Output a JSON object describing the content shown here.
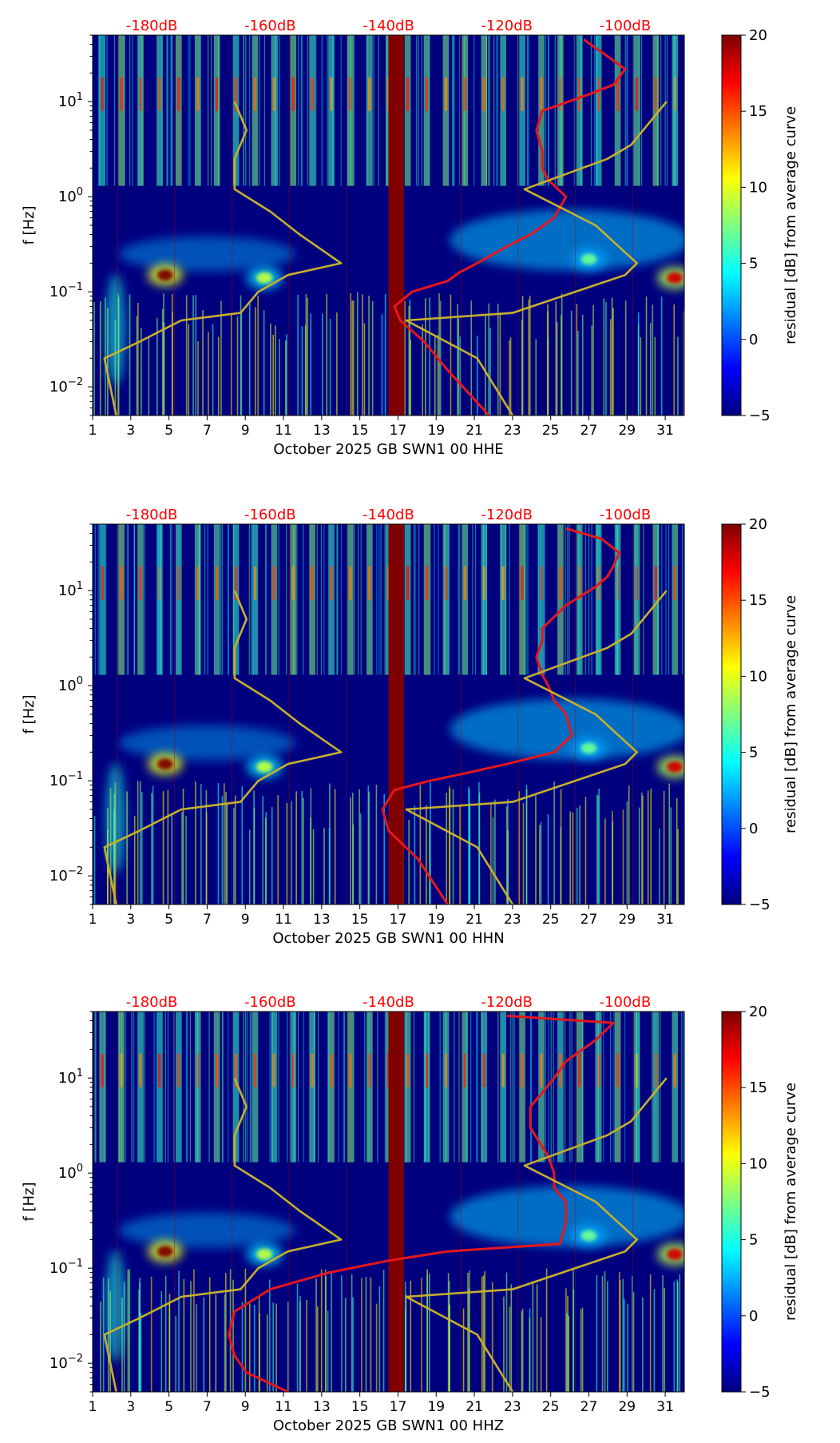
{
  "colorbar": {
    "label": "residual [dB] from average curve",
    "min": -5,
    "max": 20,
    "ticks": [
      "20",
      "15",
      "10",
      "5",
      "0",
      "−5"
    ],
    "colors": [
      "#00007f",
      "#0000ff",
      "#007fff",
      "#00ffff",
      "#7fff7f",
      "#ffff00",
      "#ff7f00",
      "#ff0000",
      "#7f0000"
    ]
  },
  "colors": {
    "psd_curve": "#e8161b",
    "noise_model": "#c8b02b",
    "db_label": "#ff0000",
    "data_gap": "#7f0000",
    "background": "#00007f"
  },
  "chart_data": [
    {
      "type": "heatmap",
      "title": "",
      "xlabel": "October 2025 GB SWN1 00 HHE",
      "ylabel": "f [Hz]",
      "xlim": [
        1,
        32
      ],
      "ylim": [
        0.005,
        50
      ],
      "yscale": "log",
      "x_ticks": [
        "1",
        "3",
        "5",
        "7",
        "9",
        "11",
        "13",
        "15",
        "17",
        "19",
        "21",
        "23",
        "25",
        "27",
        "29",
        "31"
      ],
      "y_ticks": [
        {
          "value": 0.01,
          "base": "10",
          "exp": "−2"
        },
        {
          "value": 0.1,
          "base": "10",
          "exp": "−1"
        },
        {
          "value": 1,
          "base": "10",
          "exp": "0"
        },
        {
          "value": 10,
          "base": "10",
          "exp": "1"
        }
      ],
      "db_axis": {
        "labels": [
          "-180dB",
          "-160dB",
          "-140dB",
          "-120dB",
          "-100dB"
        ],
        "values": [
          -180,
          -160,
          -140,
          -120,
          -100
        ],
        "range": [
          -190,
          -90
        ]
      },
      "data_gap_days": [
        16.5,
        17.3
      ],
      "series": [
        {
          "name": "PSD curve",
          "db": [
            -107,
            -103,
            -100,
            -101,
            -102,
            -106,
            -114,
            -115,
            -114,
            -114,
            -113,
            -110,
            -112,
            -116,
            -120,
            -125,
            -128,
            -130,
            -136,
            -139,
            -138,
            -134,
            -130,
            -123
          ],
          "freq": [
            45,
            30,
            22,
            18,
            15,
            12,
            8,
            5,
            3,
            2,
            1.5,
            1,
            0.6,
            0.4,
            0.3,
            0.2,
            0.16,
            0.13,
            0.1,
            0.07,
            0.05,
            0.03,
            0.015,
            0.005
          ]
        },
        {
          "name": "NLNM",
          "db": [
            -166,
            -164,
            -166,
            -166,
            -160,
            -155,
            -148,
            -157,
            -162,
            -165,
            -175,
            -182,
            -188,
            -187,
            -186
          ],
          "freq": [
            10,
            5,
            2.5,
            1.2,
            0.7,
            0.4,
            0.2,
            0.15,
            0.1,
            0.06,
            0.05,
            0.03,
            0.02,
            0.01,
            0.005
          ]
        },
        {
          "name": "NHNM",
          "db": [
            -93,
            -99,
            -103,
            -117,
            -105,
            -98,
            -100,
            -119,
            -137,
            -125,
            -119
          ],
          "freq": [
            10,
            3.5,
            2.5,
            1.2,
            0.5,
            0.2,
            0.15,
            0.06,
            0.05,
            0.02,
            0.005
          ]
        }
      ],
      "hotspots": [
        {
          "day": 4.8,
          "freq": 0.15,
          "level": 20
        },
        {
          "day": 31.5,
          "freq": 0.14,
          "level": 18
        },
        {
          "day": 10.0,
          "freq": 0.14,
          "level": 9
        },
        {
          "day": 27.0,
          "freq": 0.22,
          "level": 7
        }
      ]
    },
    {
      "type": "heatmap",
      "title": "",
      "xlabel": "October 2025 GB SWN1 00 HHN",
      "ylabel": "f [Hz]",
      "xlim": [
        1,
        32
      ],
      "ylim": [
        0.005,
        50
      ],
      "yscale": "log",
      "x_ticks": [
        "1",
        "3",
        "5",
        "7",
        "9",
        "11",
        "13",
        "15",
        "17",
        "19",
        "21",
        "23",
        "25",
        "27",
        "29",
        "31"
      ],
      "y_ticks": [
        {
          "value": 0.01,
          "base": "10",
          "exp": "−2"
        },
        {
          "value": 0.1,
          "base": "10",
          "exp": "−1"
        },
        {
          "value": 1,
          "base": "10",
          "exp": "0"
        },
        {
          "value": 10,
          "base": "10",
          "exp": "1"
        }
      ],
      "db_axis": {
        "labels": [
          "-180dB",
          "-160dB",
          "-140dB",
          "-120dB",
          "-100dB"
        ],
        "values": [
          -180,
          -160,
          -140,
          -120,
          -100
        ],
        "range": [
          -190,
          -90
        ]
      },
      "data_gap_days": [
        16.5,
        17.3
      ],
      "series": [
        {
          "name": "PSD curve",
          "db": [
            -110,
            -104,
            -101,
            -102,
            -103,
            -105,
            -110,
            -114,
            -114,
            -115,
            -114,
            -113,
            -112,
            -110,
            -109,
            -112,
            -120,
            -127,
            -133,
            -139,
            -141,
            -140,
            -135,
            -130
          ],
          "freq": [
            45,
            35,
            25,
            18,
            14,
            11,
            7,
            4,
            3,
            2,
            1.3,
            1.0,
            0.7,
            0.5,
            0.3,
            0.2,
            0.15,
            0.12,
            0.1,
            0.08,
            0.05,
            0.03,
            0.015,
            0.005
          ]
        },
        {
          "name": "NLNM",
          "db": [
            -166,
            -164,
            -166,
            -166,
            -160,
            -155,
            -148,
            -157,
            -162,
            -165,
            -175,
            -182,
            -188,
            -187,
            -186
          ],
          "freq": [
            10,
            5,
            2.5,
            1.2,
            0.7,
            0.4,
            0.2,
            0.15,
            0.1,
            0.06,
            0.05,
            0.03,
            0.02,
            0.01,
            0.005
          ]
        },
        {
          "name": "NHNM",
          "db": [
            -93,
            -99,
            -103,
            -117,
            -105,
            -98,
            -100,
            -119,
            -137,
            -125,
            -119
          ],
          "freq": [
            10,
            3.5,
            2.5,
            1.2,
            0.5,
            0.2,
            0.15,
            0.06,
            0.05,
            0.02,
            0.005
          ]
        }
      ],
      "hotspots": [
        {
          "day": 4.8,
          "freq": 0.15,
          "level": 20
        },
        {
          "day": 31.5,
          "freq": 0.14,
          "level": 18
        },
        {
          "day": 10.0,
          "freq": 0.14,
          "level": 9
        },
        {
          "day": 27.0,
          "freq": 0.22,
          "level": 7
        }
      ]
    },
    {
      "type": "heatmap",
      "title": "",
      "xlabel": "October 2025 GB SWN1 00 HHZ",
      "ylabel": "f [Hz]",
      "xlim": [
        1,
        32
      ],
      "ylim": [
        0.005,
        50
      ],
      "yscale": "log",
      "x_ticks": [
        "1",
        "3",
        "5",
        "7",
        "9",
        "11",
        "13",
        "15",
        "17",
        "19",
        "21",
        "23",
        "25",
        "27",
        "29",
        "31"
      ],
      "y_ticks": [
        {
          "value": 0.01,
          "base": "10",
          "exp": "−2"
        },
        {
          "value": 0.1,
          "base": "10",
          "exp": "−1"
        },
        {
          "value": 1,
          "base": "10",
          "exp": "0"
        },
        {
          "value": 10,
          "base": "10",
          "exp": "1"
        }
      ],
      "db_axis": {
        "labels": [
          "-180dB",
          "-160dB",
          "-140dB",
          "-120dB",
          "-100dB"
        ],
        "values": [
          -180,
          -160,
          -140,
          -120,
          -100
        ],
        "range": [
          -190,
          -90
        ]
      },
      "data_gap_days": [
        16.5,
        17.3
      ],
      "series": [
        {
          "name": "PSD curve",
          "db": [
            -120,
            -102,
            -105,
            -110,
            -112,
            -114,
            -116,
            -116,
            -113,
            -112,
            -112,
            -110,
            -110,
            -111,
            -130,
            -140,
            -150,
            -160,
            -166,
            -167,
            -166,
            -164,
            -157
          ],
          "freq": [
            45,
            38,
            25,
            15,
            10,
            7,
            5,
            3,
            1.5,
            1.0,
            0.7,
            0.5,
            0.3,
            0.18,
            0.15,
            0.12,
            0.09,
            0.06,
            0.035,
            0.02,
            0.012,
            0.008,
            0.005
          ]
        },
        {
          "name": "NLNM",
          "db": [
            -166,
            -164,
            -166,
            -166,
            -160,
            -155,
            -148,
            -157,
            -162,
            -165,
            -175,
            -182,
            -188,
            -187,
            -186
          ],
          "freq": [
            10,
            5,
            2.5,
            1.2,
            0.7,
            0.4,
            0.2,
            0.15,
            0.1,
            0.06,
            0.05,
            0.03,
            0.02,
            0.01,
            0.005
          ]
        },
        {
          "name": "NHNM",
          "db": [
            -93,
            -99,
            -103,
            -117,
            -105,
            -98,
            -100,
            -119,
            -137,
            -125,
            -119
          ],
          "freq": [
            10,
            3.5,
            2.5,
            1.2,
            0.5,
            0.2,
            0.15,
            0.06,
            0.05,
            0.02,
            0.005
          ]
        }
      ],
      "hotspots": [
        {
          "day": 4.8,
          "freq": 0.15,
          "level": 20
        },
        {
          "day": 31.5,
          "freq": 0.14,
          "level": 18
        },
        {
          "day": 10.0,
          "freq": 0.14,
          "level": 9
        },
        {
          "day": 27.0,
          "freq": 0.22,
          "level": 7
        }
      ]
    }
  ]
}
